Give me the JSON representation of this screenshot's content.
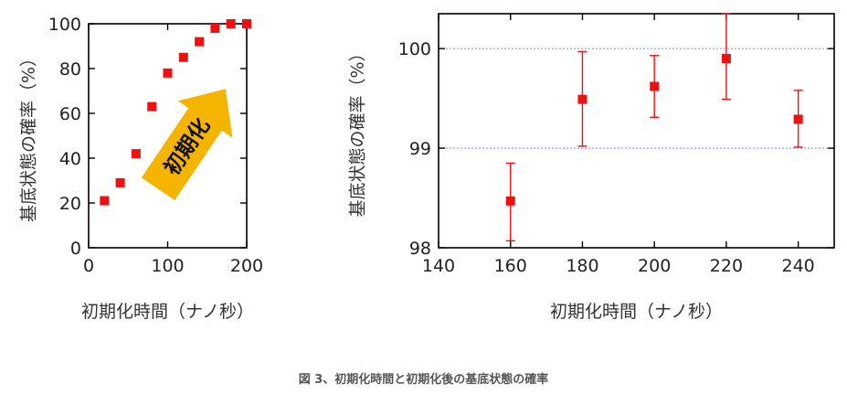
{
  "chart_data": [
    {
      "type": "scatter",
      "xlabel": "初期化時間（ナノ秒）",
      "ylabel": "基底状態の確率（%）",
      "xlim": [
        0,
        200
      ],
      "ylim": [
        0,
        100
      ],
      "xticks": [
        "0",
        "100",
        "200"
      ],
      "yticks": [
        "0",
        "20",
        "40",
        "60",
        "80",
        "100"
      ],
      "grid": false,
      "annotation": "初期化",
      "marker_color": "#ee1111",
      "arrow_color": "#f5b400",
      "points": [
        {
          "x": 20,
          "y": 21
        },
        {
          "x": 40,
          "y": 29
        },
        {
          "x": 60,
          "y": 42
        },
        {
          "x": 80,
          "y": 63
        },
        {
          "x": 100,
          "y": 78
        },
        {
          "x": 120,
          "y": 85
        },
        {
          "x": 140,
          "y": 92
        },
        {
          "x": 160,
          "y": 98
        },
        {
          "x": 180,
          "y": 100
        },
        {
          "x": 200,
          "y": 100
        }
      ]
    },
    {
      "type": "scatter",
      "xlabel": "初期化時間（ナノ秒）",
      "ylabel": "基底状態の確率（%）",
      "xlim": [
        140,
        250
      ],
      "ylim": [
        98,
        100.35
      ],
      "xticks": [
        "140",
        "160",
        "180",
        "200",
        "220",
        "240"
      ],
      "yticks": [
        "98",
        "99",
        "100"
      ],
      "grid": true,
      "marker_color": "#ee1111",
      "points": [
        {
          "x": 160,
          "y": 98.47,
          "err_low": 98.07,
          "err_high": 98.85
        },
        {
          "x": 180,
          "y": 99.49,
          "err_low": 99.02,
          "err_high": 99.97
        },
        {
          "x": 200,
          "y": 99.62,
          "err_low": 99.31,
          "err_high": 99.93
        },
        {
          "x": 220,
          "y": 99.9,
          "err_low": 99.49,
          "err_high": 100.35
        },
        {
          "x": 240,
          "y": 99.29,
          "err_low": 99.01,
          "err_high": 99.58
        }
      ]
    }
  ],
  "caption": "図 3、初期化時間と初期化後の基底状態の確率"
}
